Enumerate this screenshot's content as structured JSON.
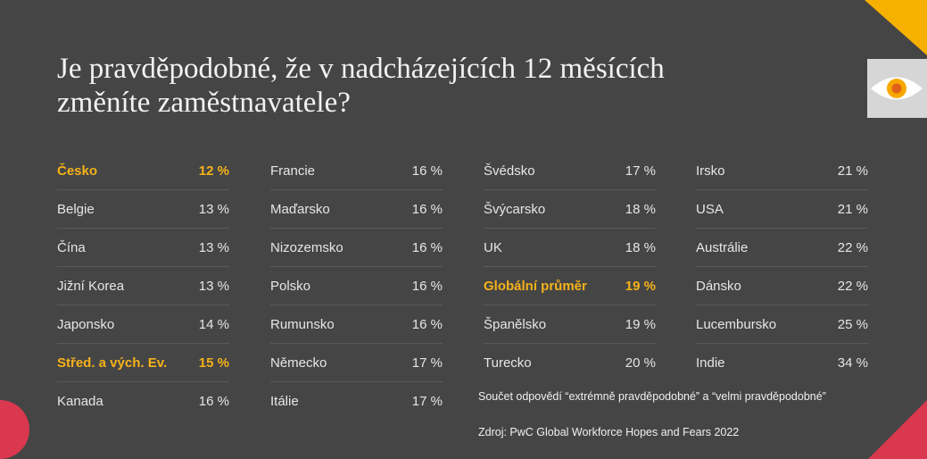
{
  "title_line1": "Je pravděpodobné, že v nadcházejících 12 měsících",
  "title_line2": "změníte zaměstnavatele?",
  "note": "Součet odpovědí “extrémně pravděpodobné” a “velmi pravděpodobné”",
  "source": "Zdroj: PwC Global Workforce Hopes and Fears 2022",
  "colors": {
    "background": "#454545",
    "highlight": "#f5b21a",
    "accent_red": "#d9384f",
    "accent_yellow": "#f6b000"
  },
  "icons": [
    "eye-icon"
  ],
  "chart_data": {
    "type": "table",
    "columns": [
      [
        {
          "name": "Česko",
          "value": "12 %",
          "highlight": true
        },
        {
          "name": "Belgie",
          "value": "13 %"
        },
        {
          "name": "Čína",
          "value": "13 %"
        },
        {
          "name": "Jižní Korea",
          "value": "13 %"
        },
        {
          "name": "Japonsko",
          "value": "14 %"
        },
        {
          "name": "Střed. a vých. Ev.",
          "value": "15 %",
          "highlight": true
        },
        {
          "name": "Kanada",
          "value": "16 %"
        }
      ],
      [
        {
          "name": "Francie",
          "value": "16 %"
        },
        {
          "name": "Maďarsko",
          "value": "16 %"
        },
        {
          "name": "Nizozemsko",
          "value": "16 %"
        },
        {
          "name": "Polsko",
          "value": "16 %"
        },
        {
          "name": "Rumunsko",
          "value": "16 %"
        },
        {
          "name": "Německo",
          "value": "17 %"
        },
        {
          "name": "Itálie",
          "value": "17 %"
        }
      ],
      [
        {
          "name": "Švédsko",
          "value": "17 %"
        },
        {
          "name": "Švýcarsko",
          "value": "18 %"
        },
        {
          "name": "UK",
          "value": "18 %"
        },
        {
          "name": "Globální průměr",
          "value": "19 %",
          "highlight": true
        },
        {
          "name": "Španělsko",
          "value": "19 %"
        },
        {
          "name": "Turecko",
          "value": "20 %"
        }
      ],
      [
        {
          "name": "Irsko",
          "value": "21 %"
        },
        {
          "name": "USA",
          "value": "21 %"
        },
        {
          "name": "Austrálie",
          "value": "22 %"
        },
        {
          "name": "Dánsko",
          "value": "22 %"
        },
        {
          "name": "Lucembursko",
          "value": "25 %"
        },
        {
          "name": "Indie",
          "value": "34 %"
        }
      ]
    ]
  }
}
